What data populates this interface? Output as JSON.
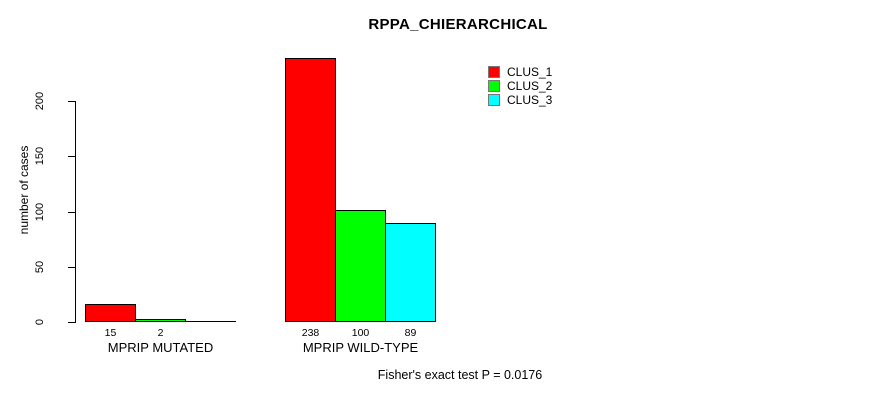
{
  "title": "RPPA_CHIERARCHICAL",
  "footer": "Fisher's exact test P = 0.0176",
  "y_axis": {
    "label": "number of cases",
    "tick_labels": [
      "0",
      "50",
      "100",
      "150",
      "200"
    ]
  },
  "legend": {
    "entries": [
      {
        "label": "CLUS_1",
        "color": "#FF0000"
      },
      {
        "label": "CLUS_2",
        "color": "#00FF00"
      },
      {
        "label": "CLUS_3",
        "color": "#00FFFF"
      }
    ]
  },
  "chart_data": {
    "type": "bar",
    "title": "RPPA_CHIERARCHICAL",
    "xlabel": "",
    "ylabel": "number of cases",
    "categories": [
      "MPRIP MUTATED",
      "MPRIP WILD-TYPE"
    ],
    "series": [
      {
        "name": "CLUS_1",
        "color": "#FF0000",
        "values": [
          15,
          238
        ]
      },
      {
        "name": "CLUS_2",
        "color": "#00FF00",
        "values": [
          2,
          100
        ]
      },
      {
        "name": "CLUS_3",
        "color": "#00FFFF",
        "values": [
          0,
          89
        ]
      }
    ],
    "bar_value_labels": [
      [
        "15",
        "2",
        ""
      ],
      [
        "238",
        "100",
        "89"
      ]
    ],
    "yticks": [
      0,
      50,
      100,
      150,
      200
    ],
    "ylim": [
      0,
      240
    ],
    "grid": false,
    "legend_position": "top-right-inside",
    "annotation": "Fisher's exact test P = 0.0176"
  }
}
